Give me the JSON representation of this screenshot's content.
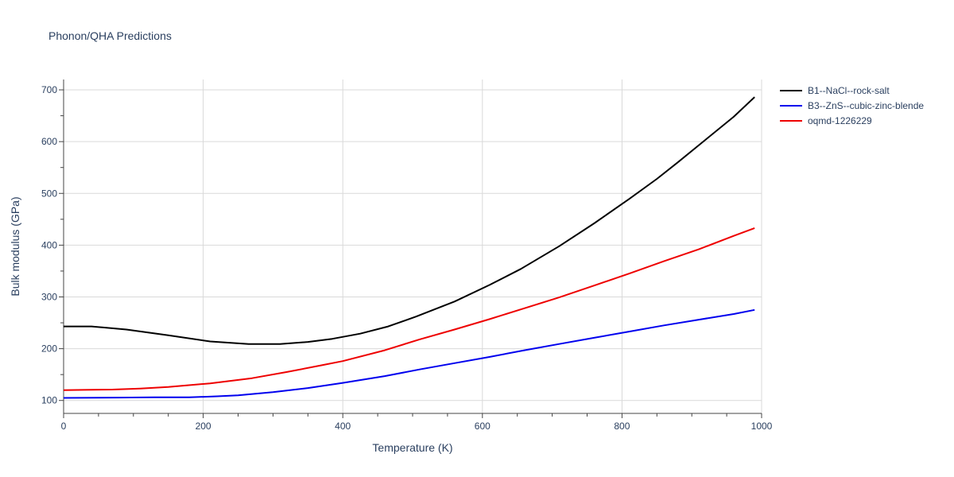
{
  "chart_data": {
    "type": "line",
    "title": "Phonon/QHA Predictions",
    "xlabel": "Temperature (K)",
    "ylabel": "Bulk modulus (GPa)",
    "xlim": [
      0,
      1000
    ],
    "ylim": [
      75,
      720
    ],
    "x_ticks": [
      0,
      200,
      400,
      600,
      800,
      1000
    ],
    "y_ticks": [
      100,
      200,
      300,
      400,
      500,
      600,
      700
    ],
    "grid": true,
    "legend_position": "top-right",
    "series": [
      {
        "name": "B1--NaCl--rock-salt",
        "color": "#000000",
        "x": [
          0,
          40,
          90,
          150,
          210,
          265,
          310,
          350,
          385,
          425,
          465,
          505,
          560,
          610,
          655,
          710,
          760,
          810,
          850,
          880,
          920,
          960,
          990
        ],
        "y": [
          243,
          243,
          237,
          226,
          214,
          209,
          209,
          213,
          219,
          229,
          243,
          262,
          291,
          323,
          354,
          398,
          442,
          489,
          528,
          560,
          604,
          648,
          686
        ]
      },
      {
        "name": "B3--ZnS--cubic-zinc-blende",
        "color": "#0000ee",
        "x": [
          0,
          80,
          130,
          180,
          220,
          250,
          300,
          350,
          400,
          460,
          510,
          560,
          610,
          660,
          710,
          760,
          810,
          860,
          910,
          960,
          990
        ],
        "y": [
          105,
          105.5,
          106,
          106,
          108,
          110,
          116,
          124,
          134,
          147,
          160,
          172,
          184,
          197,
          209,
          221,
          233,
          245,
          256,
          267,
          275
        ]
      },
      {
        "name": "oqmd-1226229",
        "color": "#ee0000",
        "x": [
          0,
          30,
          70,
          110,
          150,
          210,
          270,
          320,
          370,
          400,
          460,
          510,
          560,
          610,
          660,
          710,
          760,
          810,
          860,
          910,
          960,
          990
        ],
        "y": [
          120,
          120.5,
          121,
          123,
          126,
          133,
          143,
          155,
          168,
          176,
          197,
          218,
          237,
          257,
          278,
          299,
          322,
          345,
          369,
          392,
          418,
          433
        ]
      }
    ]
  }
}
